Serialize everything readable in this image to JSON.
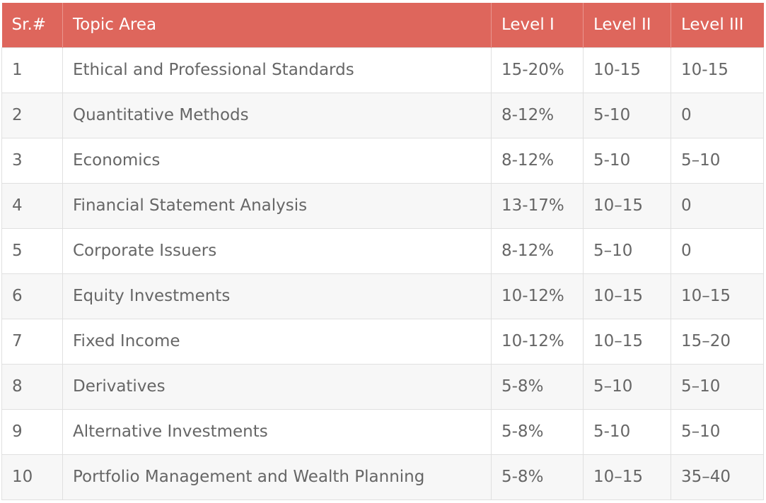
{
  "table": {
    "headers": [
      "Sr.#",
      "Topic Area",
      "Level I",
      "Level II",
      "Level III"
    ],
    "rows": [
      [
        "1",
        "Ethical and Professional Standards",
        "15-20%",
        "10-15",
        "10-15"
      ],
      [
        "2",
        "Quantitative Methods",
        "8-12%",
        "5-10",
        "0"
      ],
      [
        "3",
        "Economics",
        "8-12%",
        "5-10",
        "5–10"
      ],
      [
        "4",
        "Financial Statement Analysis",
        "13-17%",
        "10–15",
        "0"
      ],
      [
        "5",
        "Corporate Issuers",
        "8-12%",
        "5–10",
        "0"
      ],
      [
        "6",
        "Equity Investments",
        "10-12%",
        "10–15",
        "10–15"
      ],
      [
        "7",
        "Fixed Income",
        "10-12%",
        "10–15",
        "15–20"
      ],
      [
        "8",
        "Derivatives",
        "5-8%",
        "5–10",
        "5–10"
      ],
      [
        "9",
        "Alternative Investments",
        "5-8%",
        "5-10",
        "5–10"
      ],
      [
        "10",
        "Portfolio Management and Wealth Planning",
        "5-8%",
        "10–15",
        "35–40"
      ]
    ]
  },
  "colors": {
    "header_bg": "#de665c",
    "header_text": "#ffffff",
    "body_text": "#666666",
    "stripe_bg": "#f7f7f7",
    "border": "#e0e0e0"
  }
}
